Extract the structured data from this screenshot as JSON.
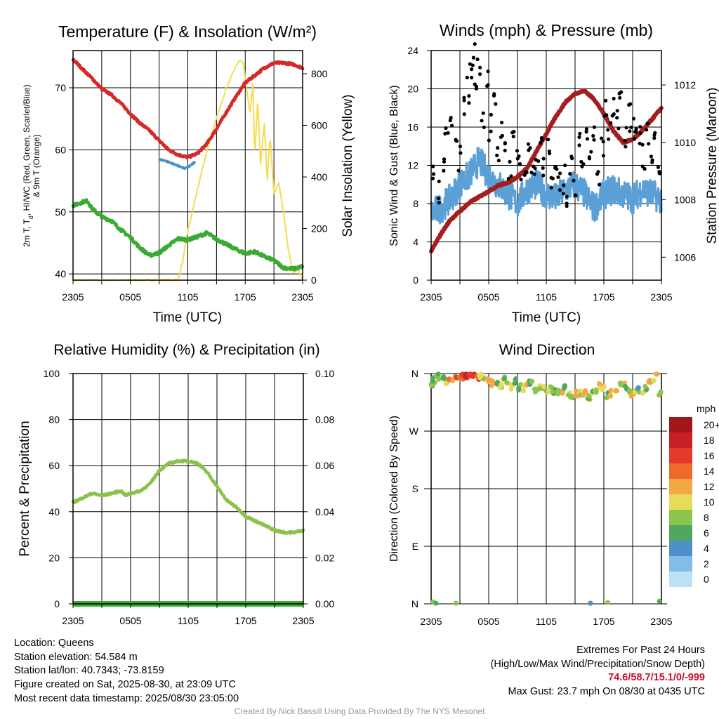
{
  "colors": {
    "temperature": "#d62a2a",
    "dewpoint": "#3aaa35",
    "windchill": "#4a90c8",
    "insolation": "#f5dc50",
    "wind": "#5a9fd6",
    "gust": "#000000",
    "pressure": "#a51e1e",
    "humidity": "#8bc34a",
    "precip": "#3aaa35"
  },
  "panels": {
    "temp": {
      "title": "Temperature (F) & Insolation (W/m²)",
      "ylabel_line1": "2m T, T",
      "ylabel_line1_sub": "d",
      "ylabel_line1_rest": ", HI/WC (Red, Green, Scarlet/Blue)",
      "ylabel_line2": "& 9m T (Orange)",
      "ylabel_right": "Solar Insolation (Yellow)",
      "xlabel": "Time (UTC)"
    },
    "winds": {
      "title": "Winds (mph) & Pressure (mb)",
      "ylabel": "Sonic Wind & Gust (Blue, Black)",
      "ylabel_right": "Station Pressure (Maroon)",
      "xlabel": "Time (UTC)"
    },
    "rh": {
      "title": "Relative Humidity (%) & Precipitation (in)",
      "ylabel": "Percent & Precipitation"
    },
    "wdir": {
      "title": "Wind Direction",
      "ylabel": "Direction (Colored By Speed)",
      "colorbar_title": "mph",
      "colorbar_labels": [
        "20+",
        "18",
        "16",
        "14",
        "12",
        "10",
        "8",
        "6",
        "4",
        "2",
        "0"
      ],
      "colorbar_colors": [
        "#a3171c",
        "#c92026",
        "#e23b2b",
        "#ef6a2a",
        "#f6a745",
        "#e5dd5a",
        "#8cc44e",
        "#4ea85f",
        "#4d8fcb",
        "#82bde6",
        "#bde2f6"
      ]
    }
  },
  "info": {
    "location": "Location: Queens",
    "elevation": "Station elevation: 54.584 m",
    "latlon": "Station lat/lon: 40.7343; -73.8159",
    "created": "Figure created on Sat, 2025-08-30, at 23:09 UTC",
    "recent": "Most recent data timestamp: 2025/08/30 23:05:00",
    "extremes_title": "Extremes For Past 24 Hours",
    "extremes_desc": "(High/Low/Max Wind/Precipitation/Snow Depth)",
    "extremes_values": "74.6/58.7/15.1/0/-999",
    "max_gust": "Max Gust: 23.7 mph On 08/30 at 0435 UTC",
    "credit": "Created By Nick Bassill Using Data Provided By The NYS Mesonet"
  },
  "chart_data": [
    {
      "type": "line",
      "title": "Temperature (F) & Insolation (W/m²)",
      "xlabel": "Time (UTC)",
      "ylabel": "2m T, Td, HI/WC (Red, Green, Scarlet/Blue) & 9m T (Orange)",
      "ylabel_right": "Solar Insolation (Yellow)",
      "x_unit": "hours since 2305 UTC",
      "xlim": [
        0,
        24
      ],
      "x_ticks": [
        "2305",
        "0505",
        "1105",
        "1705",
        "2305"
      ],
      "ylim": [
        39,
        76
      ],
      "y_ticks": [
        40,
        50,
        60,
        70
      ],
      "ylim_right": [
        0,
        890
      ],
      "y_ticks_right": [
        0,
        200,
        400,
        600,
        800
      ],
      "grid": true,
      "series": [
        {
          "name": "Temperature",
          "axis": "left",
          "x": [
            0,
            1,
            2,
            3,
            4,
            5,
            6,
            7,
            8,
            9,
            10,
            11,
            12,
            13,
            14,
            15,
            16,
            17,
            18,
            19,
            20,
            21,
            22,
            23,
            24
          ],
          "values": [
            74.6,
            73.0,
            71.5,
            69.8,
            68.9,
            67.5,
            65.8,
            64.3,
            63.1,
            61.5,
            60.0,
            59.2,
            58.8,
            59.4,
            61.0,
            63.4,
            66.0,
            68.5,
            70.8,
            72.0,
            73.2,
            74.0,
            74.0,
            73.8,
            73.2
          ]
        },
        {
          "name": "Dew Point",
          "axis": "left",
          "x": [
            0,
            1,
            1.5,
            2,
            3,
            4,
            5,
            6,
            7,
            8,
            9,
            10,
            11,
            12,
            13,
            14,
            15,
            16,
            17,
            18,
            19,
            20,
            21,
            22,
            23,
            24
          ],
          "values": [
            51.0,
            51.6,
            51.8,
            50.5,
            49.2,
            48.6,
            47.1,
            45.9,
            44.2,
            43.0,
            43.4,
            44.6,
            45.7,
            45.5,
            46.0,
            46.6,
            45.6,
            44.8,
            44.0,
            43.3,
            43.6,
            42.8,
            42.2,
            41.0,
            40.8,
            41.2
          ]
        },
        {
          "name": "Wind Chill",
          "axis": "left",
          "x": [
            9.2,
            9.7,
            10.2,
            10.7,
            11.2,
            11.7,
            12.2,
            12.7
          ],
          "values": [
            58.4,
            58.2,
            57.9,
            57.6,
            57.3,
            57.0,
            57.4,
            58.0
          ]
        },
        {
          "name": "Solar Insolation",
          "axis": "right",
          "x": [
            0,
            11,
            11.5,
            12,
            13,
            14,
            15,
            16,
            17,
            17.5,
            17.8,
            18,
            18.3,
            18.5,
            18.8,
            19,
            19.3,
            19.6,
            20,
            20.3,
            20.6,
            21,
            21.5,
            22,
            22.5,
            23,
            23.5,
            24
          ],
          "values": [
            0,
            0,
            80,
            190,
            350,
            500,
            630,
            740,
            830,
            855,
            840,
            780,
            700,
            650,
            760,
            480,
            700,
            450,
            610,
            380,
            560,
            330,
            380,
            260,
            120,
            30,
            40,
            0
          ]
        }
      ]
    },
    {
      "type": "line",
      "title": "Winds (mph) & Pressure (mb)",
      "xlabel": "Time (UTC)",
      "ylabel": "Sonic Wind & Gust (Blue, Black)",
      "ylabel_right": "Station Pressure (Maroon)",
      "x_unit": "hours since 2305 UTC",
      "xlim": [
        0,
        24
      ],
      "x_ticks": [
        "2305",
        "0505",
        "1105",
        "1705",
        "2305"
      ],
      "ylim": [
        0,
        24
      ],
      "y_ticks": [
        0,
        4,
        8,
        12,
        16,
        20,
        24
      ],
      "ylim_right": [
        1005.2,
        1013.2
      ],
      "y_ticks_right": [
        1006,
        1008,
        1010,
        1012
      ],
      "grid": true,
      "series": [
        {
          "name": "Sonic Wind",
          "axis": "left",
          "x": [
            0,
            1,
            2,
            3,
            4,
            5,
            6,
            7,
            8,
            9,
            10,
            11,
            12,
            13,
            14,
            15,
            16,
            17,
            18,
            19,
            20,
            21,
            22,
            23,
            24
          ],
          "values": [
            7,
            7.5,
            8.5,
            10,
            11,
            12.5,
            11,
            10,
            9,
            8,
            9.5,
            10,
            9,
            8.5,
            9.5,
            10,
            9,
            7.5,
            9,
            9.5,
            9,
            8.5,
            9.5,
            9,
            8.5
          ]
        },
        {
          "name": "Wind Gust",
          "axis": "left",
          "x": [
            0.3,
            0.7,
            1.2,
            1.6,
            2.1,
            2.6,
            3.0,
            3.4,
            3.8,
            4.1,
            4.4,
            4.7,
            5.0,
            5.4,
            5.8,
            6.2,
            6.6,
            7.0,
            7.4,
            7.8,
            8.2,
            8.6,
            9.0,
            9.4,
            9.8,
            10.2,
            10.6,
            11.0,
            11.4,
            11.8,
            12.2,
            12.6,
            13.0,
            13.4,
            13.8,
            14.2,
            14.6,
            15.0,
            15.4,
            15.8,
            16.2,
            16.6,
            17.0,
            17.4,
            17.8,
            18.2,
            18.6,
            19.0,
            19.4,
            19.8,
            20.2,
            20.6,
            21.0,
            21.4,
            21.8,
            22.2,
            22.6,
            23.0,
            23.4,
            23.8
          ],
          "values": [
            10.5,
            9.5,
            12.0,
            15.5,
            17.0,
            13.5,
            12.5,
            18.0,
            20.0,
            21.5,
            23.5,
            19.0,
            22.0,
            17.0,
            21.0,
            16.0,
            19.0,
            14.0,
            15.0,
            13.5,
            12.0,
            15.5,
            13.0,
            12.0,
            10.5,
            14.0,
            11.5,
            13.0,
            15.0,
            12.0,
            14.5,
            11.0,
            13.0,
            10.0,
            10.5,
            9.0,
            12.5,
            10.0,
            14.0,
            11.5,
            15.0,
            12.5,
            16.0,
            10.5,
            13.5,
            17.5,
            15.0,
            18.0,
            16.5,
            18.5,
            15.0,
            17.0,
            16.0,
            14.5,
            15.5,
            13.0,
            15.5,
            12.0,
            14.0,
            11.0
          ]
        },
        {
          "name": "Station Pressure",
          "axis": "right",
          "x": [
            0,
            1,
            2,
            3,
            4,
            5,
            6,
            7,
            8,
            9,
            10,
            11,
            12,
            13,
            14,
            15,
            16,
            17,
            18,
            19,
            20,
            21,
            22,
            23,
            24
          ],
          "values": [
            1006.2,
            1006.8,
            1007.3,
            1007.6,
            1007.9,
            1008.1,
            1008.3,
            1008.5,
            1008.6,
            1008.8,
            1009.1,
            1009.7,
            1010.3,
            1010.9,
            1011.4,
            1011.7,
            1011.8,
            1011.5,
            1011.0,
            1010.4,
            1010.0,
            1010.1,
            1010.4,
            1010.8,
            1011.2
          ]
        }
      ]
    },
    {
      "type": "line",
      "title": "Relative Humidity (%) & Precipitation (in)",
      "ylabel": "Percent & Precipitation",
      "x_unit": "hours since 2305 UTC",
      "xlim": [
        0,
        24
      ],
      "x_ticks": [
        "2305",
        "0505",
        "1105",
        "1705",
        "2305"
      ],
      "ylim": [
        0,
        100
      ],
      "y_ticks": [
        0,
        20,
        40,
        60,
        80,
        100
      ],
      "ylim_right": [
        0,
        0.1
      ],
      "y_ticks_right": [
        "0.00",
        "0.02",
        "0.04",
        "0.06",
        "0.08",
        "0.10"
      ],
      "grid": true,
      "series": [
        {
          "name": "Relative Humidity",
          "axis": "left",
          "x": [
            0,
            1,
            2,
            3,
            4,
            5,
            5.5,
            6,
            7,
            8,
            9,
            10,
            11,
            12,
            13,
            14,
            15,
            16,
            17,
            18,
            19,
            20,
            21,
            22,
            23,
            24
          ],
          "values": [
            44,
            46,
            48,
            47,
            48,
            49,
            47,
            48,
            49,
            52,
            58,
            61,
            62,
            62,
            61,
            57,
            51,
            45,
            42,
            38,
            36,
            34,
            32,
            31,
            31,
            32
          ]
        },
        {
          "name": "Precipitation",
          "axis": "right",
          "x": [
            0,
            24
          ],
          "values": [
            0,
            0
          ]
        }
      ]
    },
    {
      "type": "scatter",
      "title": "Wind Direction",
      "ylabel": "Direction (Colored By Speed)",
      "x_unit": "hours since 2305 UTC",
      "xlim": [
        0,
        24
      ],
      "x_ticks": [
        "2305",
        "0505",
        "1105",
        "1705",
        "2305"
      ],
      "ylim": [
        0,
        360
      ],
      "y_ticks": [
        "N",
        "E",
        "S",
        "W",
        "N"
      ],
      "colorbar": {
        "title": "mph",
        "labels": [
          "20+",
          "18",
          "16",
          "14",
          "12",
          "10",
          "8",
          "6",
          "4",
          "2",
          "0"
        ]
      },
      "grid": true,
      "points": {
        "x": [
          0.1,
          0.3,
          0.6,
          0.9,
          1.3,
          1.7,
          2.0,
          2.4,
          2.8,
          3.2,
          3.6,
          4.0,
          4.4,
          4.8,
          5.2,
          5.6,
          6.0,
          6.4,
          6.8,
          7.2,
          7.6,
          8.0,
          8.4,
          8.8,
          9.2,
          9.6,
          10.0,
          10.4,
          10.8,
          11.2,
          11.6,
          12.0,
          12.4,
          12.8,
          13.2,
          13.6,
          14.0,
          14.4,
          14.8,
          15.2,
          15.6,
          16.0,
          16.4,
          16.8,
          17.2,
          17.6,
          18.0,
          18.4,
          18.8,
          19.2,
          19.6,
          20.0,
          20.4,
          20.8,
          21.2,
          21.6,
          22.0,
          22.4,
          22.8,
          23.2,
          23.6,
          23.9,
          0.2,
          0.5,
          2.6,
          16.6,
          18.4,
          23.8
        ],
        "y": [
          340,
          350,
          358,
          356,
          352,
          348,
          355,
          353,
          350,
          356,
          357,
          358,
          357,
          355,
          358,
          352,
          347,
          345,
          346,
          343,
          350,
          341,
          340,
          349,
          338,
          337,
          340,
          344,
          336,
          338,
          335,
          334,
          337,
          333,
          330,
          332,
          336,
          328,
          326,
          329,
          331,
          330,
          324,
          328,
          332,
          340,
          336,
          326,
          329,
          334,
          345,
          341,
          338,
          329,
          332,
          335,
          330,
          339,
          345,
          350,
          355,
          330,
          3,
          1,
          1,
          1,
          2,
          4
        ],
        "speeds": [
          6,
          6,
          7,
          8,
          7,
          9,
          12,
          13,
          14,
          15,
          16,
          17,
          16,
          15,
          10,
          9,
          12,
          11,
          4,
          10,
          8,
          9,
          8,
          7,
          7,
          8,
          9,
          6,
          7,
          8,
          8,
          9,
          7,
          6,
          8,
          9,
          7,
          8,
          6,
          9,
          8,
          10,
          7,
          8,
          9,
          11,
          10,
          6,
          11,
          10,
          8,
          9,
          7,
          9,
          10,
          6,
          9,
          8,
          11,
          8,
          10,
          7,
          8,
          6,
          7,
          4,
          8,
          5
        ]
      }
    }
  ]
}
